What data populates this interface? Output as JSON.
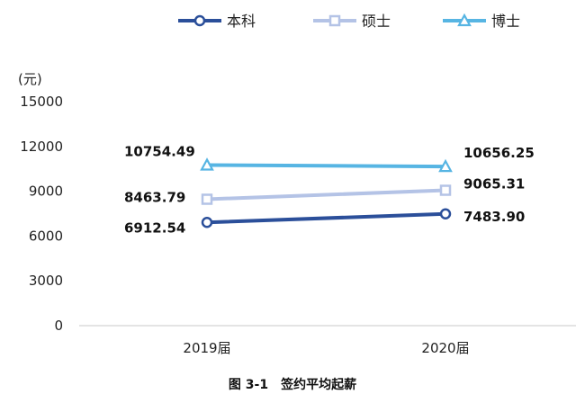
{
  "chart_data": {
    "type": "line",
    "caption": "图 3-1　签约平均起薪",
    "unit_label": "(元)",
    "categories": [
      "2019届",
      "2020届"
    ],
    "ylim": [
      0,
      15000
    ],
    "yticks": [
      "0",
      "3000",
      "6000",
      "9000",
      "12000",
      "15000"
    ],
    "legend_position": "top",
    "grid": false,
    "series": [
      {
        "name": "本科",
        "values": [
          6912.54,
          7483.9
        ],
        "labels": [
          "6912.54",
          "7483.90"
        ],
        "color": "#2b4f9a",
        "marker": "circle"
      },
      {
        "name": "硕士",
        "values": [
          8463.79,
          9065.31
        ],
        "labels": [
          "8463.79",
          "9065.31"
        ],
        "color": "#b4c3e6",
        "marker": "square"
      },
      {
        "name": "博士",
        "values": [
          10754.49,
          10656.25
        ],
        "labels": [
          "10754.49",
          "10656.25"
        ],
        "color": "#57b5e3",
        "marker": "triangle"
      }
    ]
  }
}
